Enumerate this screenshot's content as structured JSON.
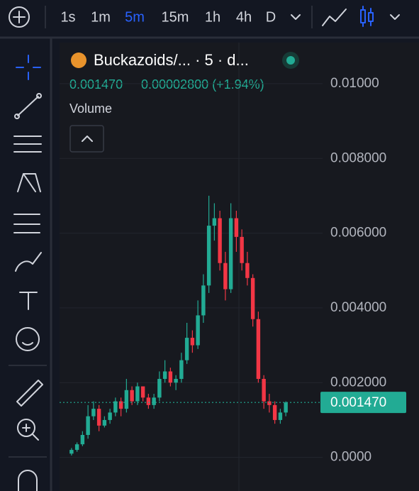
{
  "toolbar": {
    "intervals": [
      "1s",
      "1m",
      "5m",
      "15m",
      "1h",
      "4h",
      "D"
    ],
    "active_interval": 2
  },
  "header": {
    "title": "Buckazoids/... · 5 · d...",
    "change": "0.00002800 (+1.94%)",
    "indicator": "Volume"
  },
  "chart_data": {
    "type": "candlestick",
    "up_color": "#22ab94",
    "down_color": "#f23645",
    "ylim": [
      -0.0009,
      0.0111
    ],
    "yticks": [
      {
        "value": 0.01,
        "label": "0.01000"
      },
      {
        "value": 0.008,
        "label": "0.008000"
      },
      {
        "value": 0.006,
        "label": "0.006000"
      },
      {
        "value": 0.004,
        "label": "0.004000"
      },
      {
        "value": 0.002,
        "label": "0.002000"
      },
      {
        "value": 0,
        "label": "0.0000"
      }
    ],
    "last_price": {
      "value": 0.00147,
      "label": "0.001470"
    },
    "open": [
      0.0001,
      0.0002,
      0.00035,
      0.0006,
      0.0011,
      0.0013,
      0.00085,
      0.001,
      0.0012,
      0.0015,
      0.0013,
      0.0018,
      0.0015,
      0.0019,
      0.0016,
      0.0014,
      0.0016,
      0.0021,
      0.0023,
      0.002,
      0.0021,
      0.0026,
      0.0032,
      0.003,
      0.0038,
      0.0046,
      0.0062,
      0.0064,
      0.0052,
      0.0045,
      0.0064,
      0.0059,
      0.0052,
      0.0048,
      0.0037,
      0.0021,
      0.0015,
      0.0014,
      0.001,
      0.0012
    ],
    "high": [
      0.00025,
      0.0004,
      0.0007,
      0.0014,
      0.0015,
      0.0014,
      0.0011,
      0.0013,
      0.0016,
      0.0016,
      0.0021,
      0.0019,
      0.002,
      0.0019,
      0.0017,
      0.0017,
      0.0023,
      0.0026,
      0.0024,
      0.0022,
      0.0028,
      0.0036,
      0.0034,
      0.0042,
      0.0049,
      0.007,
      0.0068,
      0.0066,
      0.0055,
      0.0068,
      0.0066,
      0.0061,
      0.0055,
      0.0049,
      0.0039,
      0.0022,
      0.0017,
      0.0015,
      0.0013,
      0.0015
    ],
    "low": [
      5e-05,
      0.00015,
      0.0003,
      0.0005,
      0.001,
      0.0007,
      0.0008,
      0.0009,
      0.0011,
      0.0011,
      0.0012,
      0.0014,
      0.0014,
      0.0015,
      0.0013,
      0.0013,
      0.0015,
      0.002,
      0.0019,
      0.0018,
      0.002,
      0.0025,
      0.0028,
      0.0029,
      0.0036,
      0.0044,
      0.0058,
      0.005,
      0.0042,
      0.0044,
      0.0055,
      0.005,
      0.0046,
      0.0035,
      0.002,
      0.0013,
      0.0012,
      0.0009,
      0.0009,
      0.0011
    ],
    "close": [
      0.0002,
      0.00035,
      0.0006,
      0.0011,
      0.0013,
      0.00085,
      0.001,
      0.0012,
      0.0015,
      0.0013,
      0.0018,
      0.0015,
      0.0019,
      0.0016,
      0.0014,
      0.0016,
      0.0021,
      0.0023,
      0.002,
      0.0021,
      0.0026,
      0.0032,
      0.003,
      0.0038,
      0.0046,
      0.0062,
      0.0064,
      0.0052,
      0.0045,
      0.0064,
      0.0059,
      0.0052,
      0.0048,
      0.0037,
      0.0021,
      0.0015,
      0.0014,
      0.001,
      0.0012,
      0.00147
    ]
  }
}
